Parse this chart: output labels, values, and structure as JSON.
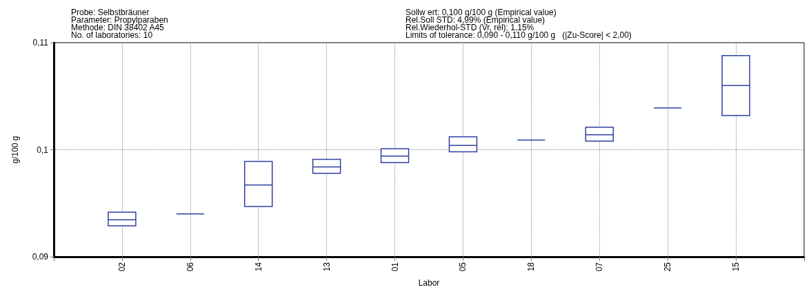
{
  "chart_data": {
    "type": "box",
    "xlabel": "Labor",
    "ylabel": "g/100 g",
    "color": "#2f3f9f",
    "annotations": [
      "Probe: Selbstbräuner",
      "Parameter: Propylparaben",
      "Methode: DIN 38402 A45",
      "No. of laboratories: 10",
      "Sollw ert: 0,100 g/100 g (Empirical value)",
      "Rel.Soll STD: 4,99% (Empirical value)",
      "Rel.Wiederhol-STD (Vr, rel): 1,15%",
      "Limits of tolerance: 0,090 - 0,110 g/100 g   (|Zu-Score| < 2,00)"
    ],
    "categories": [
      null,
      "02",
      "06",
      "14",
      "13",
      "01",
      "05",
      "18",
      "07",
      "25",
      "15",
      null
    ],
    "boxes": [
      null,
      {
        "low": 0.0929,
        "q1": 0.0929,
        "median": 0.09345,
        "q3": 0.09416,
        "high": 0.09416
      },
      {
        "low": 0.094,
        "q1": 0.094,
        "median": 0.094,
        "q3": 0.094,
        "high": 0.094
      },
      {
        "low": 0.0947,
        "q1": 0.0947,
        "median": 0.0967,
        "q3": 0.0989,
        "high": 0.0989
      },
      {
        "low": 0.0978,
        "q1": 0.0978,
        "median": 0.0984,
        "q3": 0.0991,
        "high": 0.0991
      },
      {
        "low": 0.0988,
        "q1": 0.0988,
        "median": 0.0994,
        "q3": 0.1001,
        "high": 0.1001
      },
      {
        "low": 0.0998,
        "q1": 0.0998,
        "median": 0.1004,
        "q3": 0.1012,
        "high": 0.1012
      },
      {
        "low": 0.1009,
        "q1": 0.1009,
        "median": 0.1009,
        "q3": 0.1009,
        "high": 0.1009
      },
      {
        "low": 0.1008,
        "q1": 0.1008,
        "median": 0.1014,
        "q3": 0.1021,
        "high": 0.1021
      },
      {
        "low": 0.1039,
        "q1": 0.1039,
        "median": 0.1039,
        "q3": 0.1039,
        "high": 0.1039
      },
      {
        "low": 0.1032,
        "q1": 0.1032,
        "median": 0.106,
        "q3": 0.1088,
        "high": 0.1088
      },
      null
    ],
    "ylim": [
      0.09,
      0.11
    ],
    "yticks": [
      {
        "value": 0.09,
        "label": "0,09"
      },
      {
        "value": 0.1,
        "label": "0,1"
      },
      {
        "value": 0.11,
        "label": "0,11"
      }
    ],
    "grid": true
  }
}
